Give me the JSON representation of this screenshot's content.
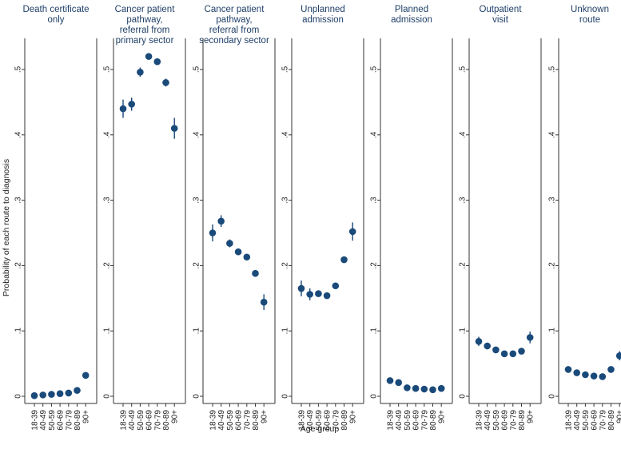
{
  "chart_data": {
    "type": "scatter",
    "ylabel": "Probability of each route to diagnosis",
    "xlabel": "Age group",
    "ylim": [
      0,
      0.55
    ],
    "yticks": [
      {
        "value": 0,
        "label": "0"
      },
      {
        "value": 0.1,
        "label": ".1"
      },
      {
        "value": 0.2,
        "label": ".2"
      },
      {
        "value": 0.3,
        "label": ".3"
      },
      {
        "value": 0.4,
        "label": ".4"
      },
      {
        "value": 0.5,
        "label": ".5"
      }
    ],
    "categories": [
      "18-39",
      "40-49",
      "50-59",
      "60-69",
      "70-79",
      "80-89",
      "90+"
    ],
    "marker_color": "#1a4a7a",
    "panels": [
      {
        "title": [
          "Death certificate",
          "only"
        ],
        "values": [
          0.001,
          0.002,
          0.003,
          0.004,
          0.005,
          0.009,
          0.032
        ],
        "ci": [
          [
            0.0,
            0.002
          ],
          [
            0.001,
            0.003
          ],
          [
            0.002,
            0.004
          ],
          [
            0.003,
            0.005
          ],
          [
            0.004,
            0.006
          ],
          [
            0.007,
            0.011
          ],
          [
            0.027,
            0.037
          ]
        ]
      },
      {
        "title": [
          "Cancer patient",
          "pathway,",
          "referral from",
          "primary sector"
        ],
        "values": [
          0.44,
          0.447,
          0.496,
          0.52,
          0.512,
          0.48,
          0.41
        ],
        "ci": [
          [
            0.426,
            0.454
          ],
          [
            0.437,
            0.457
          ],
          [
            0.489,
            0.503
          ],
          [
            0.516,
            0.524
          ],
          [
            0.507,
            0.517
          ],
          [
            0.474,
            0.486
          ],
          [
            0.394,
            0.426
          ]
        ]
      },
      {
        "title": [
          "Cancer patient",
          "pathway,",
          "referral from",
          "secondary sector"
        ],
        "values": [
          0.25,
          0.268,
          0.234,
          0.221,
          0.213,
          0.188,
          0.144
        ],
        "ci": [
          [
            0.237,
            0.263
          ],
          [
            0.259,
            0.277
          ],
          [
            0.228,
            0.24
          ],
          [
            0.217,
            0.225
          ],
          [
            0.209,
            0.217
          ],
          [
            0.183,
            0.193
          ],
          [
            0.132,
            0.156
          ]
        ]
      },
      {
        "title": [
          "Unplanned",
          "admission"
        ],
        "values": [
          0.165,
          0.156,
          0.157,
          0.154,
          0.169,
          0.209,
          0.252
        ],
        "ci": [
          [
            0.153,
            0.177
          ],
          [
            0.147,
            0.165
          ],
          [
            0.152,
            0.162
          ],
          [
            0.15,
            0.158
          ],
          [
            0.165,
            0.173
          ],
          [
            0.205,
            0.213
          ],
          [
            0.238,
            0.266
          ]
        ]
      },
      {
        "title": [
          "Planned",
          "admission"
        ],
        "values": [
          0.024,
          0.021,
          0.013,
          0.012,
          0.011,
          0.01,
          0.012
        ],
        "ci": [
          [
            0.02,
            0.028
          ],
          [
            0.018,
            0.024
          ],
          [
            0.011,
            0.015
          ],
          [
            0.01,
            0.014
          ],
          [
            0.009,
            0.013
          ],
          [
            0.008,
            0.012
          ],
          [
            0.009,
            0.015
          ]
        ]
      },
      {
        "title": [
          "Outpatient",
          "visit"
        ],
        "values": [
          0.084,
          0.077,
          0.071,
          0.065,
          0.065,
          0.069,
          0.09
        ],
        "ci": [
          [
            0.077,
            0.091
          ],
          [
            0.072,
            0.082
          ],
          [
            0.067,
            0.075
          ],
          [
            0.062,
            0.068
          ],
          [
            0.062,
            0.068
          ],
          [
            0.066,
            0.072
          ],
          [
            0.081,
            0.099
          ]
        ]
      },
      {
        "title": [
          "Unknown",
          "route"
        ],
        "values": [
          0.041,
          0.036,
          0.033,
          0.031,
          0.03,
          0.041,
          0.062
        ],
        "ci": [
          [
            0.037,
            0.045
          ],
          [
            0.033,
            0.039
          ],
          [
            0.031,
            0.035
          ],
          [
            0.029,
            0.033
          ],
          [
            0.028,
            0.032
          ],
          [
            0.038,
            0.044
          ],
          [
            0.055,
            0.069
          ]
        ]
      }
    ]
  }
}
